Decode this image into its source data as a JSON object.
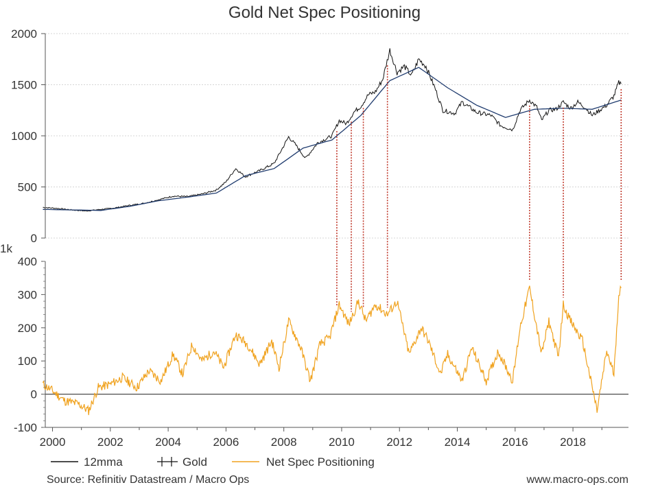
{
  "chart_data": [
    {
      "type": "line",
      "title": "Gold Net Spec Positioning",
      "y_ticks": [
        0,
        500,
        1000,
        1500,
        2000
      ],
      "ylim": [
        0,
        2000
      ],
      "grid": true,
      "series": [
        {
          "name": "Gold",
          "color": "#111111",
          "x": [
            "1999-09",
            "2000-03",
            "2000-09",
            "2001-03",
            "2001-09",
            "2002-03",
            "2002-09",
            "2003-03",
            "2003-09",
            "2004-03",
            "2004-09",
            "2005-03",
            "2005-09",
            "2006-01",
            "2006-05",
            "2006-09",
            "2007-03",
            "2007-09",
            "2008-03",
            "2008-06",
            "2008-10",
            "2009-03",
            "2009-09",
            "2009-12",
            "2010-03",
            "2010-06",
            "2010-09",
            "2010-12",
            "2011-03",
            "2011-06",
            "2011-09",
            "2011-12",
            "2012-03",
            "2012-06",
            "2012-09",
            "2012-12",
            "2013-04",
            "2013-07",
            "2013-12",
            "2014-03",
            "2014-09",
            "2015-03",
            "2015-07",
            "2015-12",
            "2016-03",
            "2016-07",
            "2016-10",
            "2016-12",
            "2017-03",
            "2017-06",
            "2017-09",
            "2017-12",
            "2018-03",
            "2018-06",
            "2018-09",
            "2018-12",
            "2019-03",
            "2019-06",
            "2019-08",
            "2019-09"
          ],
          "y": [
            300,
            290,
            275,
            265,
            280,
            295,
            320,
            340,
            375,
            410,
            405,
            430,
            470,
            550,
            680,
            600,
            660,
            730,
            990,
            910,
            780,
            930,
            1000,
            1150,
            1120,
            1230,
            1290,
            1400,
            1430,
            1550,
            1840,
            1620,
            1680,
            1590,
            1750,
            1680,
            1450,
            1250,
            1220,
            1330,
            1230,
            1200,
            1100,
            1060,
            1250,
            1350,
            1280,
            1150,
            1250,
            1260,
            1330,
            1270,
            1330,
            1280,
            1200,
            1250,
            1300,
            1390,
            1520,
            1510
          ]
        },
        {
          "name": "12mma",
          "color": "#1f3b6e",
          "x": [
            "1999-09",
            "2000-09",
            "2001-09",
            "2002-09",
            "2003-09",
            "2004-09",
            "2005-09",
            "2006-09",
            "2007-09",
            "2008-09",
            "2009-09",
            "2010-09",
            "2011-09",
            "2012-09",
            "2013-09",
            "2014-09",
            "2015-09",
            "2016-09",
            "2017-09",
            "2018-09",
            "2019-09"
          ],
          "y": [
            280,
            275,
            270,
            310,
            365,
            400,
            440,
            610,
            680,
            880,
            960,
            1200,
            1540,
            1670,
            1470,
            1300,
            1180,
            1260,
            1270,
            1260,
            1350
          ]
        }
      ],
      "legend": "bottom-left"
    },
    {
      "type": "line",
      "y_unit_label": "1k",
      "y_ticks": [
        -100,
        0,
        100,
        200,
        300,
        400
      ],
      "ylim": [
        -100,
        400
      ],
      "x_ticks": [
        "2000",
        "2002",
        "2004",
        "2006",
        "2008",
        "2010",
        "2012",
        "2014",
        "2016",
        "2018"
      ],
      "series": [
        {
          "name": "Net Spec Positioning",
          "color": "#f0a21e",
          "x": [
            "1999-09",
            "2000-01",
            "2000-06",
            "2000-12",
            "2001-04",
            "2001-08",
            "2002-01",
            "2002-06",
            "2002-12",
            "2003-05",
            "2003-10",
            "2004-03",
            "2004-07",
            "2004-11",
            "2005-03",
            "2005-08",
            "2005-12",
            "2006-05",
            "2006-10",
            "2007-03",
            "2007-08",
            "2007-11",
            "2008-03",
            "2008-08",
            "2008-12",
            "2009-04",
            "2009-08",
            "2009-12",
            "2010-04",
            "2010-08",
            "2010-11",
            "2011-03",
            "2011-08",
            "2011-12",
            "2012-05",
            "2012-10",
            "2013-01",
            "2013-06",
            "2013-09",
            "2014-03",
            "2014-07",
            "2015-01",
            "2015-06",
            "2015-12",
            "2016-03",
            "2016-07",
            "2016-12",
            "2017-03",
            "2017-07",
            "2017-09",
            "2017-12",
            "2018-05",
            "2018-09",
            "2018-11",
            "2019-03",
            "2019-06",
            "2019-08",
            "2019-09"
          ],
          "y": [
            30,
            10,
            -20,
            -30,
            -50,
            20,
            30,
            50,
            20,
            70,
            40,
            120,
            60,
            150,
            100,
            130,
            80,
            180,
            150,
            90,
            160,
            80,
            220,
            140,
            40,
            150,
            170,
            270,
            210,
            280,
            220,
            270,
            240,
            280,
            120,
            200,
            160,
            60,
            120,
            40,
            140,
            40,
            130,
            40,
            200,
            320,
            120,
            220,
            110,
            270,
            220,
            160,
            20,
            -50,
            130,
            60,
            300,
            320
          ]
        }
      ],
      "legend": "bottom-left"
    }
  ],
  "legend": [
    {
      "label": "12mma",
      "color": "#111111",
      "style": "line"
    },
    {
      "label": "Gold",
      "color": "#111111",
      "style": "ohlc"
    },
    {
      "label": "Net Spec Positioning",
      "color": "#f0a21e",
      "style": "line"
    }
  ],
  "divergence_lines": {
    "color": "#c0392b",
    "dates": [
      "2009-11",
      "2010-05",
      "2010-10",
      "2011-08",
      "2016-07",
      "2017-09",
      "2019-09"
    ]
  },
  "footer": {
    "source": "Source: Refinitiv Datastream / Macro Ops",
    "website": "www.macro-ops.com"
  }
}
